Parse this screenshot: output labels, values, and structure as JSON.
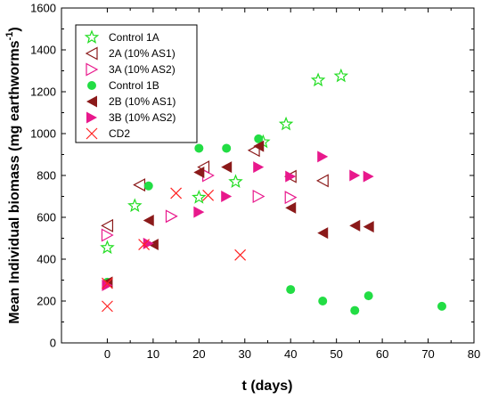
{
  "chart_data": {
    "type": "scatter",
    "xlabel": "t (days)",
    "ylabel_main": "Mean Individual biomass (mg earthworms",
    "ylabel_sup": "-1",
    "ylabel_close": ")",
    "xlim": [
      -10,
      80
    ],
    "ylim": [
      0,
      1600
    ],
    "xticks": [
      "0",
      "10",
      "20",
      "30",
      "40",
      "50",
      "60",
      "70",
      "80"
    ],
    "yticks": [
      "0",
      "200",
      "400",
      "600",
      "800",
      "1000",
      "1200",
      "1400",
      "1600"
    ],
    "legend_position": "top-left",
    "series": [
      {
        "name": "Control 1A",
        "marker": "star-open",
        "color": "#22dd22",
        "points": [
          [
            0,
            455
          ],
          [
            6,
            655
          ],
          [
            20,
            695
          ],
          [
            28,
            770
          ],
          [
            34,
            960
          ],
          [
            39,
            1045
          ],
          [
            46,
            1255
          ],
          [
            51,
            1275
          ]
        ]
      },
      {
        "name": "2A (10% AS1)",
        "marker": "triangle-left-open",
        "color": "#8b1a1a",
        "points": [
          [
            0,
            560
          ],
          [
            7,
            755
          ],
          [
            21,
            840
          ],
          [
            32,
            920
          ],
          [
            40,
            795
          ],
          [
            47,
            775
          ]
        ]
      },
      {
        "name": "3A (10% AS2)",
        "marker": "triangle-right-open",
        "color": "#e8188c",
        "points": [
          [
            0,
            515
          ],
          [
            14,
            605
          ],
          [
            22,
            800
          ],
          [
            33,
            700
          ],
          [
            40,
            695
          ]
        ]
      },
      {
        "name": "Control 1B",
        "marker": "circle",
        "color": "#22dd44",
        "points": [
          [
            0,
            290
          ],
          [
            9,
            750
          ],
          [
            20,
            930
          ],
          [
            26,
            930
          ],
          [
            33,
            975
          ],
          [
            40,
            255
          ],
          [
            47,
            200
          ],
          [
            54,
            155
          ],
          [
            57,
            225
          ],
          [
            73,
            175
          ]
        ]
      },
      {
        "name": "2B (10% AS1)",
        "marker": "triangle-left",
        "color": "#8b1a1a",
        "points": [
          [
            0,
            290
          ],
          [
            9,
            585
          ],
          [
            10,
            470
          ],
          [
            20,
            815
          ],
          [
            26,
            840
          ],
          [
            33,
            940
          ],
          [
            40,
            645
          ],
          [
            47,
            525
          ],
          [
            54,
            560
          ],
          [
            57,
            555
          ]
        ]
      },
      {
        "name": "3B (10% AS2)",
        "marker": "triangle-right",
        "color": "#e8188c",
        "points": [
          [
            0,
            275
          ],
          [
            9,
            475
          ],
          [
            20,
            625
          ],
          [
            26,
            700
          ],
          [
            33,
            840
          ],
          [
            40,
            795
          ],
          [
            47,
            890
          ],
          [
            54,
            800
          ],
          [
            57,
            795
          ]
        ]
      },
      {
        "name": "CD2",
        "marker": "x",
        "color": "#ff2222",
        "points": [
          [
            0,
            175
          ],
          [
            0,
            285
          ],
          [
            8,
            470
          ],
          [
            15,
            715
          ],
          [
            22,
            705
          ],
          [
            29,
            420
          ]
        ]
      }
    ]
  }
}
